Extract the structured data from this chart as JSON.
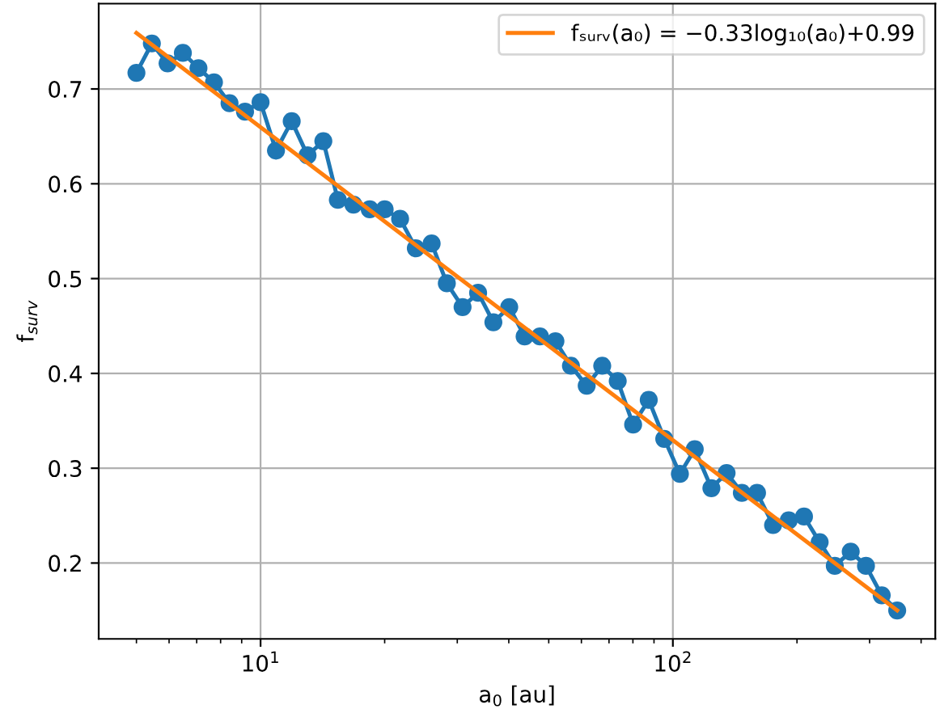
{
  "chart_data": {
    "type": "line",
    "xlabel": "a$_{0}$ [au]",
    "ylabel": "f$_{surv}$",
    "log": "x",
    "grid": true,
    "legend": "top right",
    "xlim": [
      4.05,
      433
    ],
    "ylim": [
      0.12,
      0.79
    ],
    "xticks": [
      {
        "value": 5,
        "label": null
      },
      {
        "value": 6,
        "label": null
      },
      {
        "value": 7,
        "label": null
      },
      {
        "value": 8,
        "label": null
      },
      {
        "value": 9,
        "label": null
      },
      {
        "value": 10,
        "label": "10$^{1}$"
      },
      {
        "value": 20,
        "label": null
      },
      {
        "value": 30,
        "label": null
      },
      {
        "value": 40,
        "label": null
      },
      {
        "value": 50,
        "label": null
      },
      {
        "value": 60,
        "label": null
      },
      {
        "value": 70,
        "label": null
      },
      {
        "value": 80,
        "label": null
      },
      {
        "value": 90,
        "label": null
      },
      {
        "value": 100,
        "label": "10$^{2}$"
      },
      {
        "value": 200,
        "label": null
      },
      {
        "value": 300,
        "label": null
      },
      {
        "value": 400,
        "label": null
      }
    ],
    "yticks": [
      0.2,
      0.3,
      0.4,
      0.5,
      0.6,
      0.7
    ],
    "series": [
      {
        "marker": "circle",
        "color": "#1f77b4",
        "x": [
          5.0,
          5.45,
          5.95,
          6.48,
          7.07,
          7.71,
          8.41,
          9.17,
          10.0,
          10.9,
          11.9,
          13.0,
          14.2,
          15.4,
          16.8,
          18.4,
          20.0,
          21.8,
          23.8,
          26.0,
          28.3,
          30.9,
          33.7,
          36.7,
          40.1,
          43.7,
          47.6,
          51.9,
          56.6,
          61.8,
          67.4,
          73.5,
          80.1,
          87.4,
          95.3,
          104,
          113,
          124,
          135,
          147,
          160,
          175,
          191,
          208,
          227,
          247,
          270,
          294,
          321,
          350
        ],
        "values": [
          0.717,
          0.748,
          0.727,
          0.738,
          0.722,
          0.707,
          0.685,
          0.676,
          0.686,
          0.635,
          0.666,
          0.63,
          0.645,
          0.583,
          0.578,
          0.573,
          0.573,
          0.563,
          0.532,
          0.537,
          0.495,
          0.47,
          0.485,
          0.454,
          0.47,
          0.439,
          0.439,
          0.434,
          0.408,
          0.387,
          0.408,
          0.392,
          0.346,
          0.372,
          0.331,
          0.294,
          0.32,
          0.279,
          0.295,
          0.274,
          0.274,
          0.24,
          0.245,
          0.249,
          0.222,
          0.197,
          0.212,
          0.197,
          0.166,
          0.15
        ]
      },
      {
        "marker": "none",
        "color": "#ff7f0e",
        "name": "fₛᵤᵣᵥ(a₀) = −0.33log₁₀(a₀)+0.99",
        "x": [
          5,
          350
        ],
        "values": [
          0.759,
          0.15
        ]
      }
    ]
  }
}
